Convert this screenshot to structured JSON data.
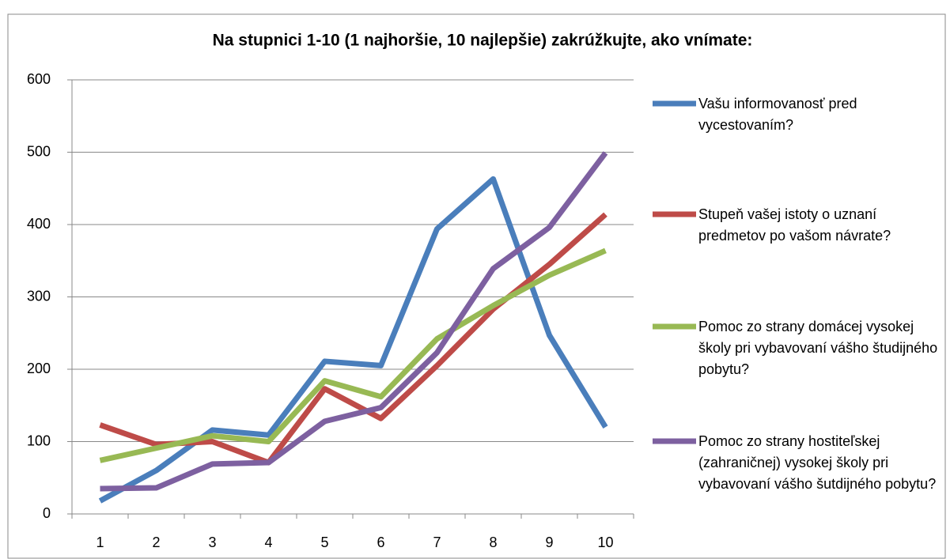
{
  "chart_data": {
    "type": "line",
    "title": "Na stupnici 1-10 (1 najhoršie, 10 najlepšie) zakrúžkujte, ako vnímate:",
    "categories": [
      "1",
      "2",
      "3",
      "4",
      "5",
      "6",
      "7",
      "8",
      "9",
      "10"
    ],
    "series": [
      {
        "name": "Vašu informovanosť pred vycestovaním?",
        "color": "#4a7ebb",
        "values": [
          18,
          60,
          116,
          109,
          211,
          205,
          394,
          463,
          247,
          120
        ]
      },
      {
        "name": "Stupeň vašej istoty o uznaní predmetov po vašom návrate?",
        "color": "#be4b48",
        "values": [
          123,
          96,
          100,
          71,
          173,
          132,
          205,
          283,
          345,
          414
        ]
      },
      {
        "name": "Pomoc zo strany domácej vysokej školy pri vybavovaní vášho študijného pobytu?",
        "color": "#98b954",
        "values": [
          74,
          91,
          108,
          100,
          184,
          162,
          242,
          288,
          330,
          364
        ]
      },
      {
        "name": "Pomoc zo strany hostiteľskej (zahraničnej) vysokej školy pri vybavovaní vášho šutdijného pobytu?",
        "color": "#7d60a0",
        "values": [
          35,
          36,
          69,
          71,
          128,
          147,
          223,
          339,
          396,
          499
        ]
      }
    ],
    "ylim": [
      0,
      600
    ],
    "yticks": [
      0,
      100,
      200,
      300,
      400,
      500,
      600
    ],
    "grid": true,
    "legend": "right"
  }
}
